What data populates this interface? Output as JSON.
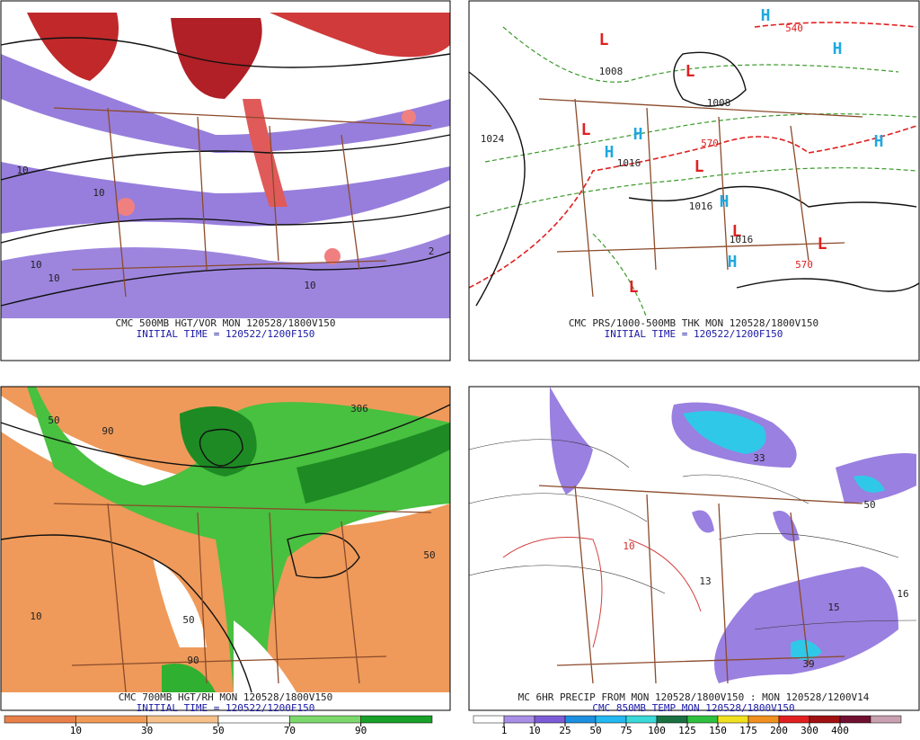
{
  "panels": [
    {
      "caption": "CMC 500MB HGT/VOR MON 120528/1800V150",
      "subcaption": "INITIAL TIME = 120522/1200F150",
      "labels": [
        {
          "text": "10",
          "color": "#222"
        },
        {
          "text": "10",
          "color": "#222"
        },
        {
          "text": "10",
          "color": "#222"
        },
        {
          "text": "10",
          "color": "#222"
        },
        {
          "text": "10",
          "color": "#222"
        },
        {
          "text": "2",
          "color": "#222"
        }
      ]
    },
    {
      "caption": "CMC PRS/1000-500MB THK MON 120528/1800V150",
      "subcaption": "INITIAL TIME = 120522/1200F150",
      "labels": [
        {
          "text": "L",
          "color": "#e02020"
        },
        {
          "text": "L",
          "color": "#e02020"
        },
        {
          "text": "L",
          "color": "#e02020"
        },
        {
          "text": "L",
          "color": "#e02020"
        },
        {
          "text": "L",
          "color": "#e02020"
        },
        {
          "text": "L",
          "color": "#e02020"
        },
        {
          "text": "L",
          "color": "#e02020"
        },
        {
          "text": "H",
          "color": "#20a8e0"
        },
        {
          "text": "H",
          "color": "#20a8e0"
        },
        {
          "text": "H",
          "color": "#20a8e0"
        },
        {
          "text": "H",
          "color": "#20a8e0"
        },
        {
          "text": "H",
          "color": "#20a8e0"
        },
        {
          "text": "H",
          "color": "#20a8e0"
        },
        {
          "text": "H",
          "color": "#20a8e0"
        },
        {
          "text": "1008",
          "color": "#222"
        },
        {
          "text": "1008",
          "color": "#222"
        },
        {
          "text": "1024",
          "color": "#222"
        },
        {
          "text": "1016",
          "color": "#222"
        },
        {
          "text": "1016",
          "color": "#222"
        },
        {
          "text": "1016",
          "color": "#222"
        },
        {
          "text": "570",
          "color": "#e02020"
        },
        {
          "text": "540",
          "color": "#e02020"
        },
        {
          "text": "570",
          "color": "#e02020"
        }
      ]
    },
    {
      "caption": "CMC 700MB HGT/RH MON 120528/1800V150",
      "subcaption": "INITIAL TIME = 120522/1200F150",
      "labels": [
        {
          "text": "50",
          "color": "#222"
        },
        {
          "text": "90",
          "color": "#222"
        },
        {
          "text": "10",
          "color": "#222"
        },
        {
          "text": "50",
          "color": "#222"
        },
        {
          "text": "50",
          "color": "#222"
        },
        {
          "text": "306",
          "color": "#222"
        },
        {
          "text": "90",
          "color": "#222"
        }
      ]
    },
    {
      "caption": "MC 6HR PRECIP FROM MON 120528/1800V150 : MON 120528/1200V14",
      "subcaption": "CMC 850MB TEMP MON 120528/1800V150",
      "labels": [
        {
          "text": "13",
          "color": "#222"
        },
        {
          "text": "16",
          "color": "#222"
        },
        {
          "text": "15",
          "color": "#222"
        },
        {
          "text": "39",
          "color": "#222"
        },
        {
          "text": "50",
          "color": "#222"
        },
        {
          "text": "33",
          "color": "#222"
        },
        {
          "text": "10",
          "color": "#d03030"
        }
      ]
    }
  ],
  "rh_scale": {
    "ticks": [
      10,
      30,
      50,
      70,
      90
    ],
    "colors": [
      "#e8804a",
      "#f09a58",
      "#f5c08a",
      "#ffffff",
      "#7cd86c",
      "#18a028"
    ]
  },
  "precip_scale": {
    "ticks": [
      1,
      10,
      25,
      50,
      75,
      100,
      125,
      150,
      175,
      200,
      300,
      400
    ],
    "colors": [
      "#ffffff",
      "#a98ee6",
      "#7c5cd6",
      "#1d8fe0",
      "#24b8f0",
      "#3ad8d8",
      "#1a7040",
      "#30c040",
      "#f0e020",
      "#f09020",
      "#e02020",
      "#a01010",
      "#701030",
      "#c8a0b0"
    ]
  }
}
